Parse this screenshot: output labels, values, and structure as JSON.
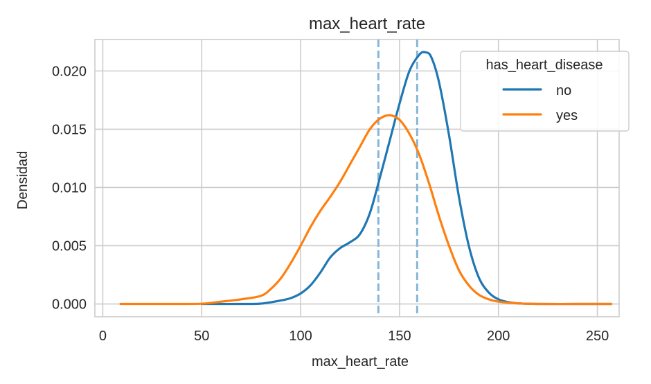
{
  "chart_data": {
    "type": "line",
    "title": "max_heart_rate",
    "xlabel": "max_heart_rate",
    "ylabel": "Densidad",
    "xlim": [
      -4,
      261
    ],
    "ylim": [
      -0.0011,
      0.0227
    ],
    "xticks": [
      0,
      50,
      100,
      150,
      200,
      250
    ],
    "xtick_labels": [
      "0",
      "50",
      "100",
      "150",
      "200",
      "250"
    ],
    "yticks": [
      0.0,
      0.005,
      0.01,
      0.015,
      0.02
    ],
    "ytick_labels": [
      "0.000",
      "0.005",
      "0.010",
      "0.015",
      "0.020"
    ],
    "grid": true,
    "legend": {
      "title": "has_heart_disease",
      "placement": "top-right",
      "entries": [
        "no",
        "yes"
      ]
    },
    "series": [
      {
        "name": "no",
        "color": "#1f77b4",
        "x": [
          50,
          70,
          80,
          90,
          95,
          100,
          105,
          110,
          115,
          120,
          125,
          130,
          135,
          140,
          145,
          150,
          155,
          160,
          163,
          166,
          170,
          175,
          180,
          185,
          190,
          195,
          200,
          205,
          210,
          220,
          240,
          257
        ],
        "y": [
          0.0,
          0.0,
          3e-05,
          0.0003,
          0.0005,
          0.0009,
          0.0016,
          0.0027,
          0.004,
          0.0048,
          0.0053,
          0.006,
          0.0078,
          0.0108,
          0.014,
          0.0172,
          0.02,
          0.0214,
          0.0216,
          0.0212,
          0.019,
          0.0145,
          0.0092,
          0.005,
          0.0023,
          0.001,
          0.0004,
          0.00015,
          5e-05,
          0.0,
          0.0,
          0.0
        ]
      },
      {
        "name": "yes",
        "color": "#ff7f0e",
        "x": [
          9,
          30,
          50,
          60,
          70,
          80,
          85,
          90,
          95,
          100,
          105,
          110,
          115,
          120,
          125,
          130,
          135,
          140,
          145,
          150,
          155,
          160,
          165,
          170,
          175,
          180,
          185,
          190,
          195,
          200,
          210,
          220,
          240,
          257
        ],
        "y": [
          0.0,
          0.0,
          2e-05,
          0.0002,
          0.0004,
          0.0007,
          0.0013,
          0.0022,
          0.0035,
          0.005,
          0.0066,
          0.008,
          0.0092,
          0.0105,
          0.012,
          0.0135,
          0.015,
          0.0159,
          0.0162,
          0.0158,
          0.0146,
          0.0128,
          0.0103,
          0.0075,
          0.005,
          0.0029,
          0.0016,
          0.0008,
          0.0004,
          0.0002,
          5e-05,
          0.0,
          0.0,
          0.0
        ]
      }
    ],
    "vlines": [
      {
        "x": 139.3,
        "color": "#86b6d9",
        "style": "dashed"
      },
      {
        "x": 158.9,
        "color": "#86b6d9",
        "style": "dashed"
      }
    ]
  }
}
